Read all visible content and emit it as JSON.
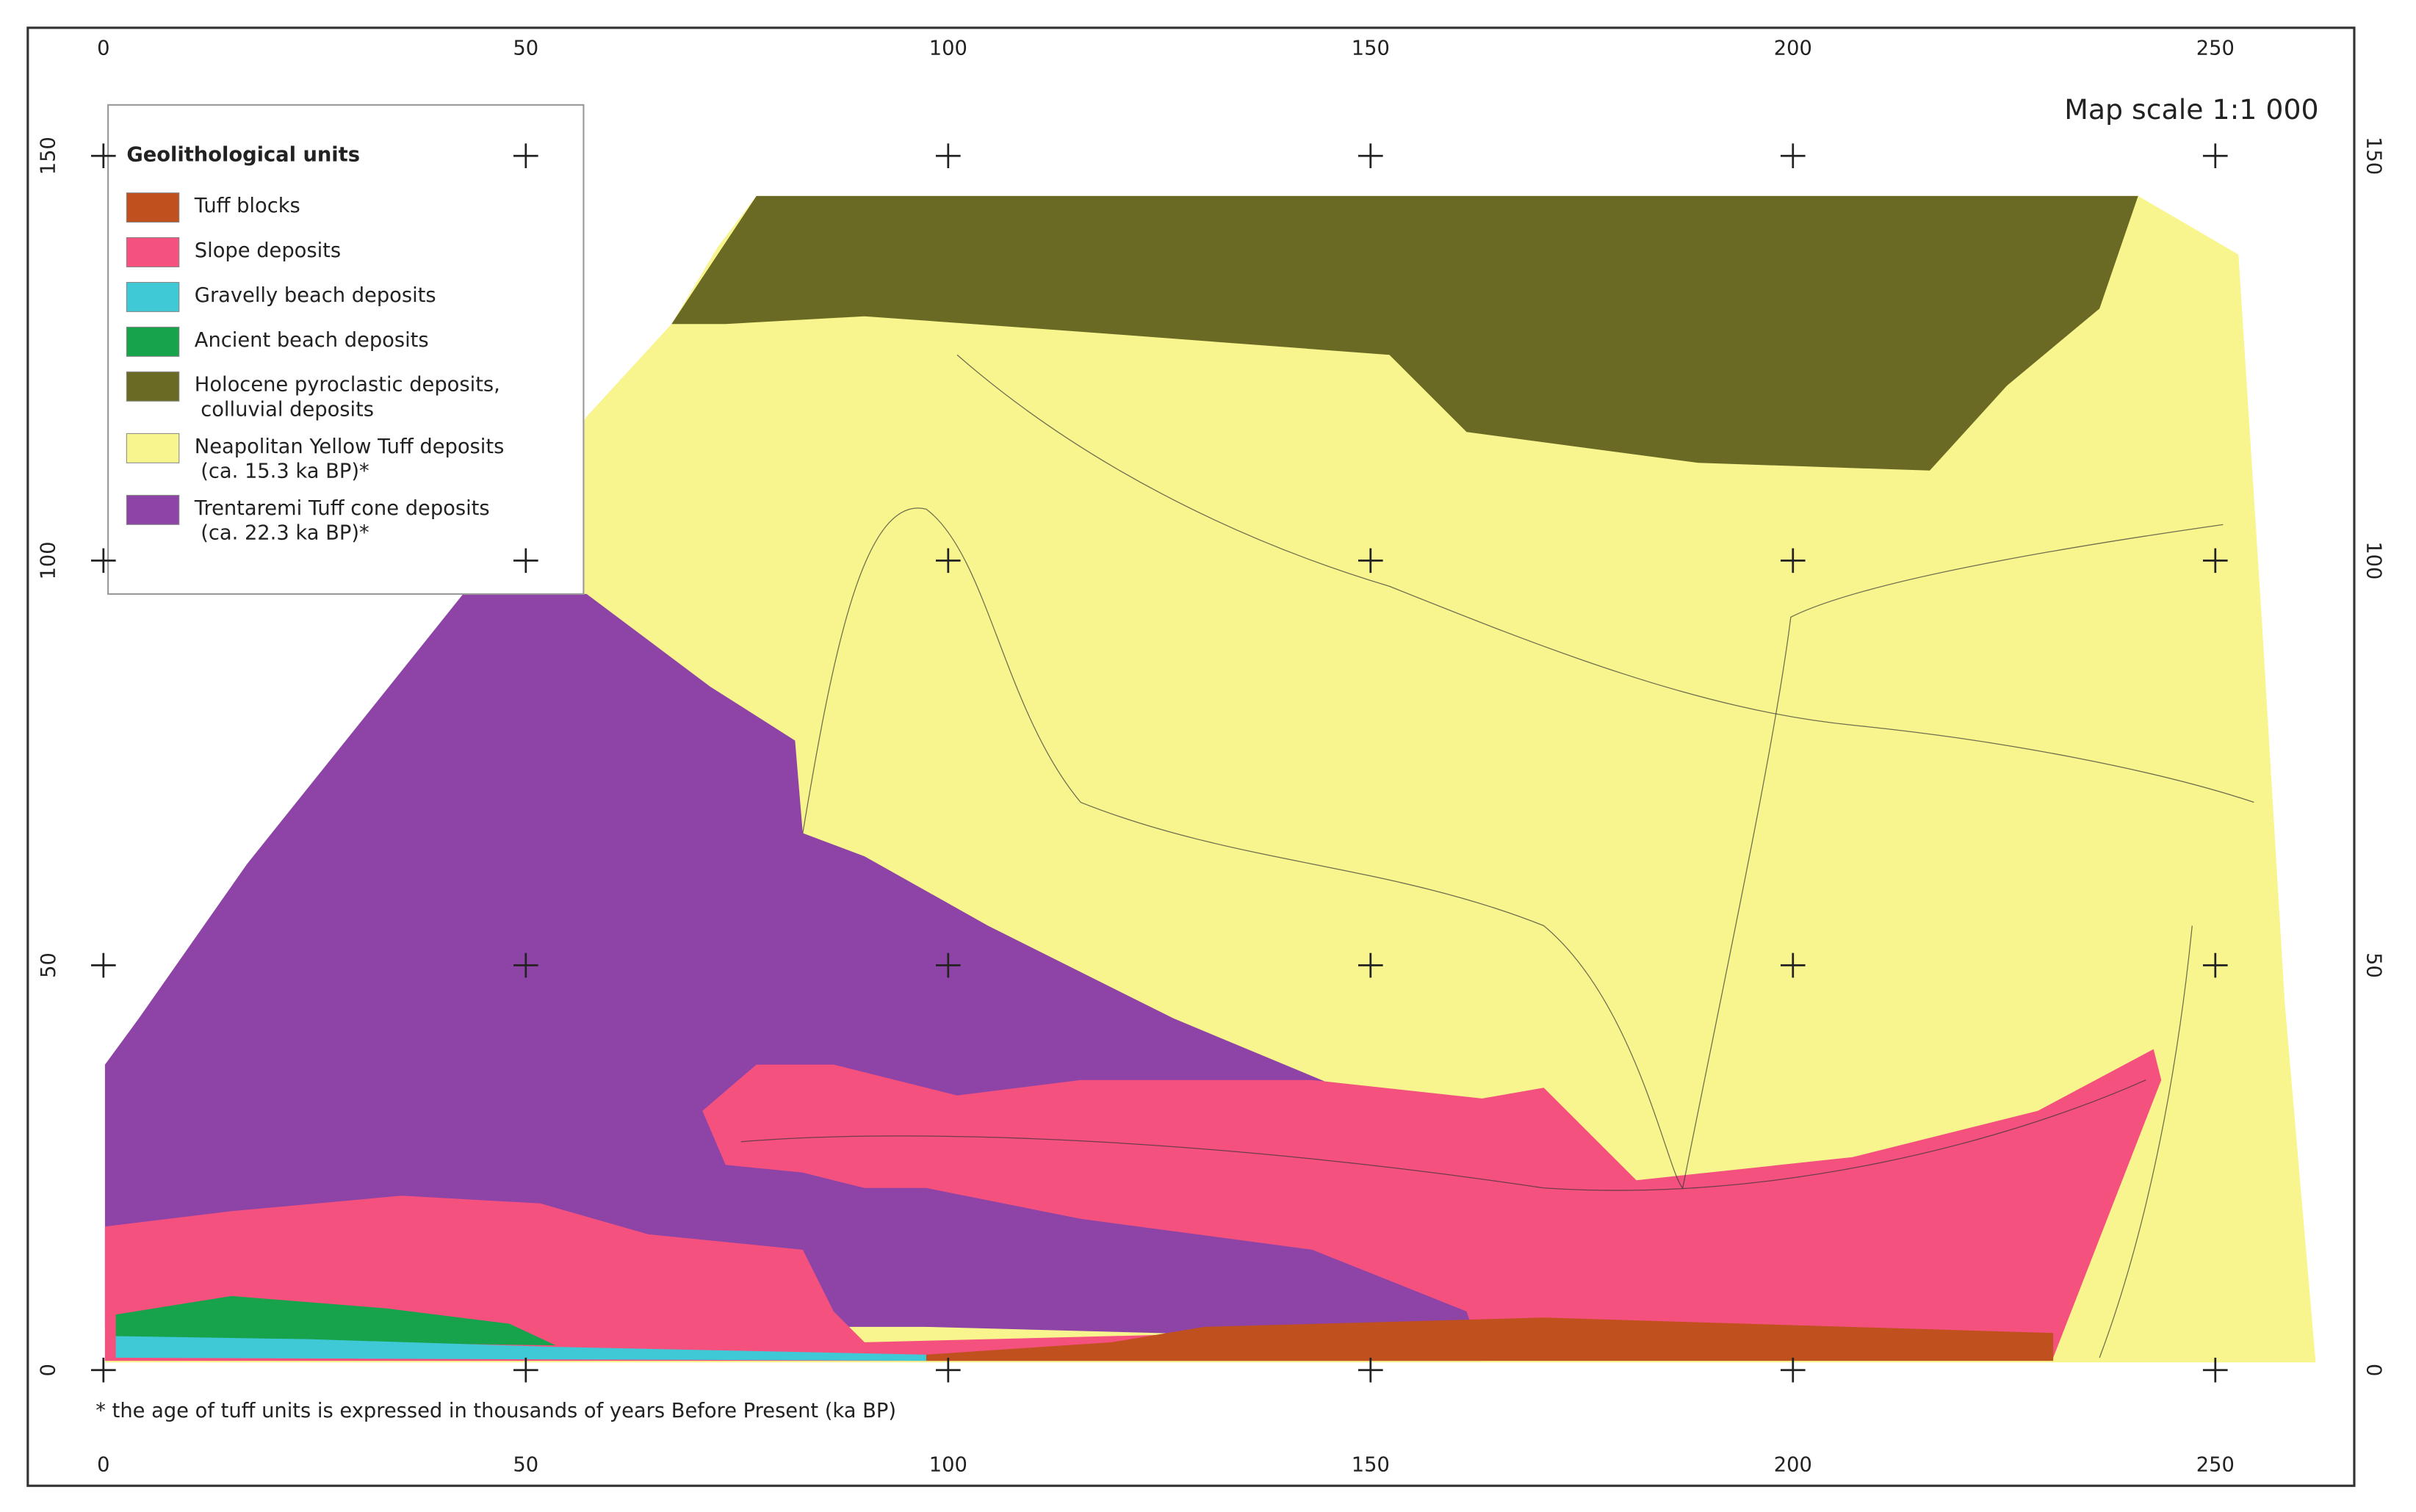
{
  "map": {
    "scale": "Map scale 1:1 000",
    "legend": {
      "title": "Geolithological units",
      "items": [
        {
          "label": [
            "Tuff blocks"
          ],
          "color": "#c0501e"
        },
        {
          "label": [
            "Slope deposits"
          ],
          "color": "#f4517f"
        },
        {
          "label": [
            "Gravelly beach deposits"
          ],
          "color": "#3fc8d6"
        },
        {
          "label": [
            "Ancient beach deposits"
          ],
          "color": "#17a34c"
        },
        {
          "label": [
            "Holocene pyroclastic deposits,",
            "colluvial deposits"
          ],
          "color": "#6a6a24"
        },
        {
          "label": [
            "Neapolitan Yellow Tuff deposits",
            "(ca. 15.3 ka BP)*"
          ],
          "color": "#f8f58e"
        },
        {
          "label": [
            "Trentaremi Tuff cone deposits",
            "(ca. 22.3 ka BP)*"
          ],
          "color": "#8d44a6"
        }
      ]
    },
    "xticks": [
      0,
      50,
      100,
      150,
      200,
      250
    ],
    "yticks": [
      0,
      50,
      100,
      150
    ],
    "footnote": "* the age of tuff units is expressed in thousands of years Before Present (ka BP)"
  }
}
